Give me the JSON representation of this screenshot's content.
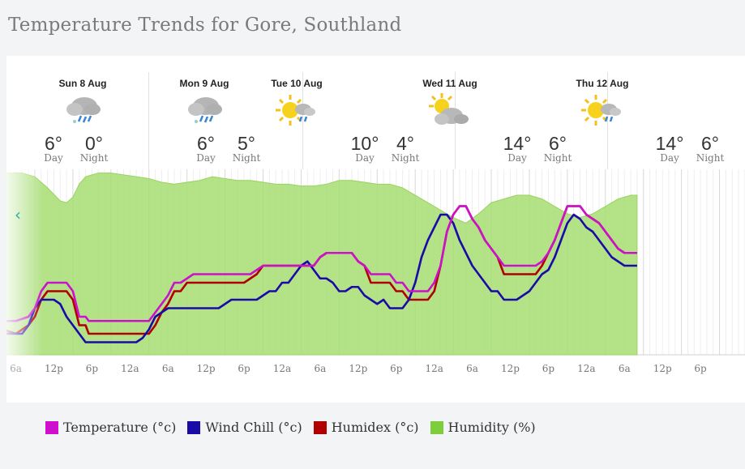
{
  "title": "Temperature Trends for Gore, Southland",
  "days": [
    {
      "label": "Sun 8 Aug",
      "day_temp": "6°",
      "night_temp": "0°",
      "day_word": "Day",
      "night_word": "Night",
      "icon": "rain-cloud-icon"
    },
    {
      "label": "Mon 9 Aug",
      "day_temp": "6°",
      "night_temp": "5°",
      "day_word": "Day",
      "night_word": "Night",
      "icon": "rain-cloud-icon"
    },
    {
      "label": "Tue 10 Aug",
      "day_temp": "10°",
      "night_temp": "4°",
      "day_word": "Day",
      "night_word": "Night",
      "icon": "sun-rain-icon"
    },
    {
      "label": "Wed 11 Aug",
      "day_temp": "14°",
      "night_temp": "6°",
      "day_word": "Day",
      "night_word": "Night",
      "icon": "sun-cloud-icon"
    },
    {
      "label": "Thu 12 Aug",
      "day_temp": "14°",
      "night_temp": "6°",
      "day_word": "Day",
      "night_word": "Night",
      "icon": "sun-rain-icon"
    }
  ],
  "nav": {
    "prev_label": "‹"
  },
  "legend": [
    {
      "label": "Temperature (°c)",
      "color": "#cc10cc"
    },
    {
      "label": "Wind Chill (°c)",
      "color": "#1a0aa8"
    },
    {
      "label": "Humidex (°c)",
      "color": "#b00000"
    },
    {
      "label": "Humidity (%)",
      "color": "#7ccf3b"
    }
  ],
  "chart_data": {
    "type": "line",
    "x_tick_labels": [
      "6a",
      "12p",
      "6p",
      "12a",
      "6a",
      "12p",
      "6p",
      "12a",
      "6a",
      "12p",
      "6p",
      "12a",
      "6a",
      "12p",
      "6p",
      "12a",
      "6a",
      "12p",
      "6p"
    ],
    "x_hours": [
      -3,
      3,
      9,
      15,
      21,
      27,
      33,
      39,
      45,
      51,
      57,
      63,
      69,
      75,
      81,
      87,
      93,
      99,
      105
    ],
    "temp_range": [
      -2,
      18
    ],
    "humidity_range": [
      0,
      100
    ],
    "grid": true,
    "series": [
      {
        "name": "Temperature (°c)",
        "color": "#cc10cc",
        "points": [
          [
            -7,
            2.5
          ],
          [
            -6,
            2.5
          ],
          [
            -5,
            1.5
          ],
          [
            -3,
            1.5
          ],
          [
            -1,
            2
          ],
          [
            0,
            3
          ],
          [
            1,
            5
          ],
          [
            2,
            6
          ],
          [
            3,
            6
          ],
          [
            5,
            6
          ],
          [
            6,
            5
          ],
          [
            7,
            2
          ],
          [
            8,
            2
          ],
          [
            8.5,
            1.5
          ],
          [
            10,
            1.5
          ],
          [
            16,
            1.5
          ],
          [
            18,
            1.5
          ],
          [
            19,
            2.5
          ],
          [
            20,
            3.5
          ],
          [
            21,
            4.5
          ],
          [
            22,
            6
          ],
          [
            23,
            6
          ],
          [
            24,
            6.5
          ],
          [
            25,
            7
          ],
          [
            33,
            7
          ],
          [
            34,
            7
          ],
          [
            35,
            7.5
          ],
          [
            36,
            8
          ],
          [
            44,
            8
          ],
          [
            45,
            9
          ],
          [
            46,
            9.5
          ],
          [
            50,
            9.5
          ],
          [
            51,
            8.5
          ],
          [
            52,
            8
          ],
          [
            53,
            7
          ],
          [
            56,
            7
          ],
          [
            57,
            6
          ],
          [
            58,
            6
          ],
          [
            59,
            5
          ],
          [
            62,
            5
          ],
          [
            63,
            6
          ],
          [
            64,
            8
          ],
          [
            65,
            12
          ],
          [
            66,
            14
          ],
          [
            67,
            15
          ],
          [
            68,
            15
          ],
          [
            69,
            13.5
          ],
          [
            70,
            12.5
          ],
          [
            71,
            11
          ],
          [
            72,
            10
          ],
          [
            73,
            9
          ],
          [
            74,
            8
          ],
          [
            75,
            8
          ],
          [
            79,
            8
          ],
          [
            80,
            8.5
          ],
          [
            81,
            9.5
          ],
          [
            82,
            11
          ],
          [
            83,
            13
          ],
          [
            84,
            15
          ],
          [
            85,
            15
          ],
          [
            86,
            15
          ],
          [
            87,
            14
          ],
          [
            88,
            13.5
          ],
          [
            89,
            13
          ],
          [
            90,
            12
          ],
          [
            91,
            11
          ],
          [
            92,
            10
          ],
          [
            93,
            9.5
          ],
          [
            95,
            9.5
          ]
        ]
      },
      {
        "name": "Humidex (°c)",
        "color": "#b00000",
        "points": [
          [
            -7,
            1.5
          ],
          [
            -6,
            1.5
          ],
          [
            -5,
            0.5
          ],
          [
            -3,
            0
          ],
          [
            -1,
            1
          ],
          [
            0,
            2
          ],
          [
            1,
            4
          ],
          [
            2,
            5
          ],
          [
            3,
            5
          ],
          [
            5,
            5
          ],
          [
            6,
            4
          ],
          [
            7,
            1
          ],
          [
            8,
            1
          ],
          [
            8.5,
            0
          ],
          [
            10,
            0
          ],
          [
            16,
            0
          ],
          [
            18,
            0
          ],
          [
            19,
            1
          ],
          [
            20,
            2.5
          ],
          [
            21,
            3.5
          ],
          [
            22,
            5
          ],
          [
            23,
            5
          ],
          [
            24,
            6
          ],
          [
            25,
            6
          ],
          [
            33,
            6
          ],
          [
            34,
            6.5
          ],
          [
            35,
            7
          ],
          [
            36,
            8
          ],
          [
            44,
            8
          ],
          [
            45,
            9
          ],
          [
            46,
            9.5
          ],
          [
            50,
            9.5
          ],
          [
            51,
            8.5
          ],
          [
            52,
            8
          ],
          [
            53,
            6
          ],
          [
            56,
            6
          ],
          [
            57,
            5
          ],
          [
            58,
            5
          ],
          [
            59,
            4
          ],
          [
            62,
            4
          ],
          [
            63,
            5
          ],
          [
            64,
            8
          ],
          [
            65,
            12
          ],
          [
            66,
            14
          ],
          [
            67,
            15
          ],
          [
            68,
            15
          ],
          [
            69,
            13.5
          ],
          [
            70,
            12.5
          ],
          [
            71,
            11
          ],
          [
            72,
            10
          ],
          [
            73,
            9
          ],
          [
            74,
            7
          ],
          [
            75,
            7
          ],
          [
            79,
            7
          ],
          [
            80,
            8
          ],
          [
            81,
            9.5
          ],
          [
            82,
            11
          ],
          [
            83,
            13
          ],
          [
            84,
            15
          ],
          [
            85,
            15
          ],
          [
            86,
            15
          ],
          [
            87,
            14
          ],
          [
            88,
            13.5
          ],
          [
            89,
            13
          ],
          [
            90,
            12
          ],
          [
            91,
            11
          ],
          [
            92,
            10
          ],
          [
            93,
            9.5
          ],
          [
            95,
            9.5
          ]
        ]
      },
      {
        "name": "Wind Chill (°c)",
        "color": "#1a0aa8",
        "points": [
          [
            -7,
            0
          ],
          [
            -3,
            0
          ],
          [
            -2,
            0
          ],
          [
            -1,
            1
          ],
          [
            0,
            3
          ],
          [
            1,
            4
          ],
          [
            2,
            4
          ],
          [
            3,
            4
          ],
          [
            4,
            3.5
          ],
          [
            5,
            2
          ],
          [
            6,
            1
          ],
          [
            7,
            0
          ],
          [
            8,
            -1
          ],
          [
            16,
            -1
          ],
          [
            17,
            -0.5
          ],
          [
            18,
            0.5
          ],
          [
            19,
            2
          ],
          [
            20,
            2.5
          ],
          [
            21,
            3
          ],
          [
            22,
            3
          ],
          [
            29,
            3
          ],
          [
            30,
            3.5
          ],
          [
            31,
            4
          ],
          [
            33,
            4
          ],
          [
            35,
            4
          ],
          [
            36,
            4.5
          ],
          [
            37,
            5
          ],
          [
            38,
            5
          ],
          [
            39,
            6
          ],
          [
            40,
            6
          ],
          [
            41,
            7
          ],
          [
            42,
            8
          ],
          [
            43,
            8.5
          ],
          [
            44,
            7.5
          ],
          [
            45,
            6.5
          ],
          [
            46,
            6.5
          ],
          [
            47,
            6
          ],
          [
            48,
            5
          ],
          [
            49,
            5
          ],
          [
            50,
            5.5
          ],
          [
            51,
            5.5
          ],
          [
            52,
            4.5
          ],
          [
            53,
            4
          ],
          [
            54,
            3.5
          ],
          [
            55,
            4
          ],
          [
            56,
            3
          ],
          [
            58,
            3
          ],
          [
            59,
            4
          ],
          [
            60,
            6
          ],
          [
            61,
            9
          ],
          [
            62,
            11
          ],
          [
            63,
            12.5
          ],
          [
            64,
            14
          ],
          [
            65,
            14
          ],
          [
            66,
            13
          ],
          [
            67,
            11
          ],
          [
            68,
            9.5
          ],
          [
            69,
            8
          ],
          [
            70,
            7
          ],
          [
            71,
            6
          ],
          [
            72,
            5
          ],
          [
            73,
            5
          ],
          [
            74,
            4
          ],
          [
            75,
            4
          ],
          [
            76,
            4
          ],
          [
            77,
            4.5
          ],
          [
            78,
            5
          ],
          [
            79,
            6
          ],
          [
            80,
            7
          ],
          [
            81,
            7.5
          ],
          [
            82,
            9
          ],
          [
            83,
            11
          ],
          [
            84,
            13
          ],
          [
            85,
            14
          ],
          [
            86,
            13.5
          ],
          [
            87,
            12.5
          ],
          [
            88,
            12
          ],
          [
            89,
            11
          ],
          [
            90,
            10
          ],
          [
            91,
            9
          ],
          [
            92,
            8.5
          ],
          [
            93,
            8
          ],
          [
            95,
            8
          ]
        ]
      },
      {
        "name": "Humidity (%)",
        "color": "#7ccf3b",
        "points": [
          [
            -7,
            98
          ],
          [
            -4,
            98
          ],
          [
            -2,
            98
          ],
          [
            0,
            96
          ],
          [
            2,
            90
          ],
          [
            4,
            83
          ],
          [
            5,
            82
          ],
          [
            6,
            85
          ],
          [
            7,
            92
          ],
          [
            8,
            96
          ],
          [
            10,
            98
          ],
          [
            12,
            98
          ],
          [
            14,
            97
          ],
          [
            16,
            96
          ],
          [
            18,
            95
          ],
          [
            20,
            93
          ],
          [
            22,
            92
          ],
          [
            24,
            93
          ],
          [
            26,
            94
          ],
          [
            28,
            96
          ],
          [
            30,
            95
          ],
          [
            32,
            94
          ],
          [
            34,
            94
          ],
          [
            36,
            93
          ],
          [
            38,
            92
          ],
          [
            40,
            92
          ],
          [
            42,
            91
          ],
          [
            44,
            91
          ],
          [
            46,
            92
          ],
          [
            48,
            94
          ],
          [
            50,
            94
          ],
          [
            52,
            93
          ],
          [
            54,
            92
          ],
          [
            56,
            92
          ],
          [
            58,
            90
          ],
          [
            60,
            86
          ],
          [
            62,
            82
          ],
          [
            64,
            78
          ],
          [
            66,
            74
          ],
          [
            68,
            71
          ],
          [
            70,
            76
          ],
          [
            72,
            82
          ],
          [
            74,
            84
          ],
          [
            76,
            86
          ],
          [
            78,
            86
          ],
          [
            80,
            84
          ],
          [
            82,
            80
          ],
          [
            84,
            76
          ],
          [
            86,
            74
          ],
          [
            88,
            76
          ],
          [
            90,
            80
          ],
          [
            92,
            84
          ],
          [
            94,
            86
          ],
          [
            95,
            86
          ]
        ]
      }
    ]
  }
}
